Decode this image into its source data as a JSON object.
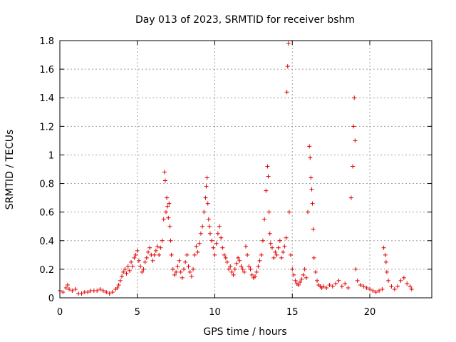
{
  "chart_data": {
    "type": "scatter",
    "title": "Day 013 of 2023, SRMTID for receiver bshm",
    "xlabel": "GPS time / hours",
    "ylabel": "SRMTID / TECUs",
    "xlim": [
      0,
      24
    ],
    "ylim": [
      0,
      1.8
    ],
    "xticks": [
      0,
      5,
      10,
      15,
      20
    ],
    "yticks": [
      0,
      0.2,
      0.4,
      0.6,
      0.8,
      1,
      1.2,
      1.4,
      1.6,
      1.8
    ],
    "xtick_labels": [
      "0",
      "5",
      "10",
      "15",
      "20"
    ],
    "ytick_labels": [
      "0",
      "0.2",
      "0.4",
      "0.6",
      "0.8",
      "1",
      "1.2",
      "1.4",
      "1.6",
      "1.8"
    ],
    "grid": true,
    "marker": "plus",
    "color": "#e00000",
    "series": [
      {
        "name": "SRMTID",
        "x": [
          0.0,
          0.2,
          0.4,
          0.5,
          0.6,
          0.8,
          1.0,
          1.2,
          1.4,
          1.6,
          1.8,
          2.0,
          2.2,
          2.4,
          2.6,
          2.8,
          3.0,
          3.2,
          3.4,
          3.6,
          3.7,
          3.8,
          3.9,
          4.0,
          4.1,
          4.2,
          4.3,
          4.4,
          4.5,
          4.6,
          4.7,
          4.8,
          4.9,
          5.0,
          5.1,
          5.2,
          5.3,
          5.4,
          5.5,
          5.6,
          5.7,
          5.8,
          5.9,
          6.0,
          6.1,
          6.2,
          6.3,
          6.4,
          6.5,
          6.6,
          6.7,
          6.75,
          6.8,
          6.85,
          6.9,
          6.95,
          7.0,
          7.05,
          7.1,
          7.15,
          7.2,
          7.3,
          7.4,
          7.5,
          7.6,
          7.7,
          7.8,
          7.9,
          8.0,
          8.1,
          8.2,
          8.3,
          8.4,
          8.5,
          8.6,
          8.7,
          8.8,
          8.9,
          9.0,
          9.1,
          9.2,
          9.3,
          9.4,
          9.45,
          9.5,
          9.55,
          9.6,
          9.65,
          9.7,
          9.8,
          9.9,
          10.0,
          10.1,
          10.2,
          10.3,
          10.4,
          10.5,
          10.6,
          10.7,
          10.8,
          10.9,
          11.0,
          11.1,
          11.2,
          11.3,
          11.4,
          11.5,
          11.6,
          11.7,
          11.8,
          11.9,
          12.0,
          12.1,
          12.2,
          12.3,
          12.4,
          12.5,
          12.6,
          12.7,
          12.8,
          12.9,
          13.0,
          13.1,
          13.2,
          13.3,
          13.4,
          13.45,
          13.5,
          13.55,
          13.6,
          13.7,
          13.8,
          13.9,
          14.0,
          14.1,
          14.2,
          14.3,
          14.4,
          14.5,
          14.6,
          14.65,
          14.7,
          14.75,
          14.8,
          14.9,
          15.0,
          15.1,
          15.2,
          15.3,
          15.4,
          15.5,
          15.6,
          15.7,
          15.8,
          15.9,
          16.0,
          16.1,
          16.15,
          16.2,
          16.25,
          16.3,
          16.35,
          16.4,
          16.5,
          16.6,
          16.7,
          16.8,
          16.9,
          17.0,
          17.2,
          17.4,
          17.6,
          17.8,
          18.0,
          18.2,
          18.4,
          18.6,
          18.8,
          18.9,
          18.95,
          19.0,
          19.05,
          19.1,
          19.2,
          19.4,
          19.6,
          19.8,
          20.0,
          20.2,
          20.4,
          20.6,
          20.8,
          20.9,
          21.0,
          21.05,
          21.1,
          21.2,
          21.4,
          21.6,
          21.8,
          22.0,
          22.2,
          22.4,
          22.6,
          22.7
        ],
        "y": [
          0.05,
          0.04,
          0.07,
          0.09,
          0.06,
          0.05,
          0.06,
          0.03,
          0.03,
          0.04,
          0.04,
          0.05,
          0.05,
          0.05,
          0.06,
          0.05,
          0.04,
          0.03,
          0.04,
          0.06,
          0.07,
          0.09,
          0.12,
          0.15,
          0.18,
          0.2,
          0.17,
          0.22,
          0.19,
          0.25,
          0.22,
          0.28,
          0.3,
          0.33,
          0.26,
          0.22,
          0.18,
          0.2,
          0.25,
          0.28,
          0.32,
          0.35,
          0.3,
          0.26,
          0.3,
          0.33,
          0.36,
          0.3,
          0.35,
          0.4,
          0.55,
          0.88,
          0.82,
          0.6,
          0.7,
          0.64,
          0.56,
          0.66,
          0.5,
          0.4,
          0.3,
          0.2,
          0.16,
          0.18,
          0.22,
          0.26,
          0.18,
          0.14,
          0.2,
          0.25,
          0.3,
          0.22,
          0.18,
          0.15,
          0.2,
          0.3,
          0.36,
          0.32,
          0.38,
          0.45,
          0.5,
          0.6,
          0.7,
          0.78,
          0.84,
          0.66,
          0.55,
          0.5,
          0.45,
          0.4,
          0.35,
          0.3,
          0.38,
          0.45,
          0.5,
          0.42,
          0.35,
          0.3,
          0.28,
          0.25,
          0.2,
          0.22,
          0.18,
          0.16,
          0.2,
          0.24,
          0.28,
          0.26,
          0.22,
          0.2,
          0.18,
          0.36,
          0.3,
          0.22,
          0.2,
          0.16,
          0.14,
          0.15,
          0.18,
          0.22,
          0.26,
          0.3,
          0.4,
          0.55,
          0.75,
          0.92,
          0.85,
          0.6,
          0.45,
          0.38,
          0.35,
          0.28,
          0.32,
          0.3,
          0.35,
          0.4,
          0.28,
          0.32,
          0.36,
          0.42,
          1.44,
          1.62,
          1.78,
          0.6,
          0.3,
          0.2,
          0.16,
          0.12,
          0.1,
          0.09,
          0.11,
          0.13,
          0.16,
          0.2,
          0.14,
          0.6,
          1.06,
          0.98,
          0.84,
          0.76,
          0.66,
          0.48,
          0.28,
          0.18,
          0.12,
          0.09,
          0.08,
          0.07,
          0.08,
          0.07,
          0.09,
          0.08,
          0.1,
          0.12,
          0.08,
          0.1,
          0.07,
          0.7,
          0.92,
          1.2,
          1.4,
          1.1,
          0.2,
          0.12,
          0.09,
          0.08,
          0.07,
          0.06,
          0.05,
          0.04,
          0.05,
          0.06,
          0.35,
          0.3,
          0.25,
          0.18,
          0.12,
          0.08,
          0.06,
          0.08,
          0.12,
          0.14,
          0.1,
          0.08,
          0.06
        ]
      }
    ]
  }
}
